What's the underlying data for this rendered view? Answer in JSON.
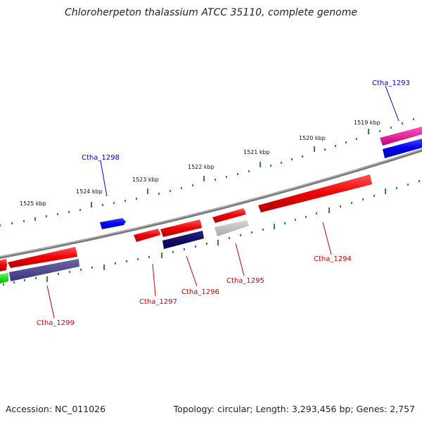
{
  "title": "Chloroherpeton thalassium ATCC 35110, complete genome",
  "footer": {
    "accession": "Accession: NC_011026",
    "info": "Topology: circular; Length: 3,293,456 bp; Genes: 2,757"
  },
  "colors": {
    "backbone": "#808080",
    "tick": "#2e8b2e",
    "label_plus": "#0000cc",
    "label_minus": "#cc0000",
    "leader_plus": "#0000cc",
    "leader_minus": "#cc0000"
  },
  "ticks": [
    {
      "label": "1519 kbp"
    },
    {
      "label": "1520 kbp"
    },
    {
      "label": "1521 kbp"
    },
    {
      "label": "1522 kbp"
    },
    {
      "label": "1523 kbp"
    },
    {
      "label": "1524 kbp"
    },
    {
      "label": "1525 kbp"
    }
  ],
  "gene_labels": [
    {
      "name": "Ctha_1293",
      "strand": "plus"
    },
    {
      "name": "Ctha_1298",
      "strand": "plus"
    },
    {
      "name": "Ctha_1294",
      "strand": "minus"
    },
    {
      "name": "Ctha_1295",
      "strand": "minus"
    },
    {
      "name": "Ctha_1296",
      "strand": "minus"
    },
    {
      "name": "Ctha_1297",
      "strand": "minus"
    },
    {
      "name": "Ctha_1299",
      "strand": "minus"
    }
  ]
}
